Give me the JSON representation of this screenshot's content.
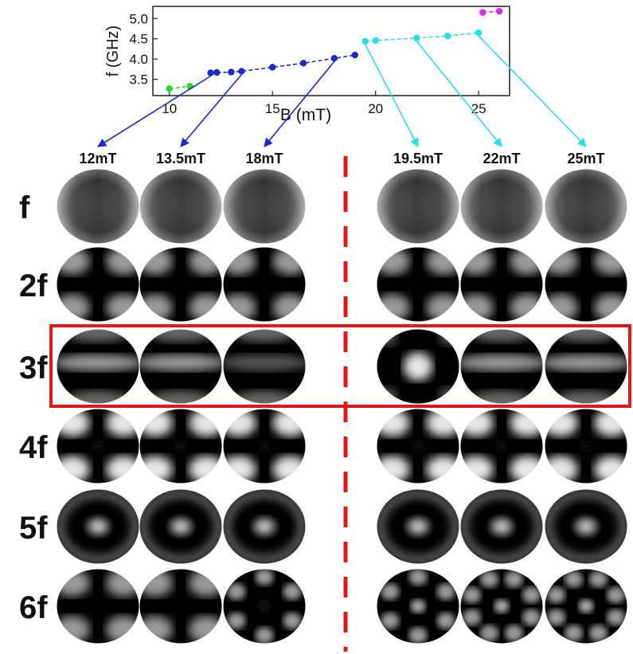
{
  "chart_data": {
    "type": "scatter",
    "xlabel": "B (mT)",
    "ylabel": "f (GHz)",
    "xlim": [
      9.2,
      26.5
    ],
    "ylim": [
      3.1,
      5.3
    ],
    "xticks": [
      "10",
      "15",
      "20",
      "25"
    ],
    "yticks": [
      "3.5",
      "4.0",
      "4.5",
      "5.0"
    ],
    "grid": false,
    "series": [
      {
        "color": "#22dd22",
        "x": [
          10,
          11
        ],
        "y": [
          3.27,
          3.33
        ]
      },
      {
        "color": "#1a2ad0",
        "x": [
          12,
          12.3,
          13,
          13.5,
          15,
          16.5,
          18,
          19
        ],
        "y": [
          3.66,
          3.67,
          3.68,
          3.7,
          3.8,
          3.9,
          4.02,
          4.1
        ]
      },
      {
        "color": "#22e0ee",
        "x": [
          19.5,
          20,
          22,
          23.5,
          25
        ],
        "y": [
          4.44,
          4.46,
          4.52,
          4.57,
          4.65
        ]
      },
      {
        "color": "#e02ce0",
        "x": [
          25.2,
          26
        ],
        "y": [
          5.15,
          5.18
        ]
      }
    ]
  },
  "columns": [
    {
      "label": "12mT",
      "B": 12
    },
    {
      "label": "13.5mT",
      "B": 13.5
    },
    {
      "label": "18mT",
      "B": 18
    },
    {
      "label": "19.5mT",
      "B": 19.5
    },
    {
      "label": "22mT",
      "B": 22
    },
    {
      "label": "25mT",
      "B": 25
    }
  ],
  "rows": [
    {
      "label": "f"
    },
    {
      "label": "2f"
    },
    {
      "label": "3f"
    },
    {
      "label": "4f"
    },
    {
      "label": "5f"
    },
    {
      "label": "6f"
    }
  ],
  "colors": {
    "divider": "#e01818",
    "highlight_box": "#e01818",
    "arrow_low_field": "#1a2ad0",
    "arrow_high_field": "#22e0ee"
  },
  "highlighted_row": "3f"
}
